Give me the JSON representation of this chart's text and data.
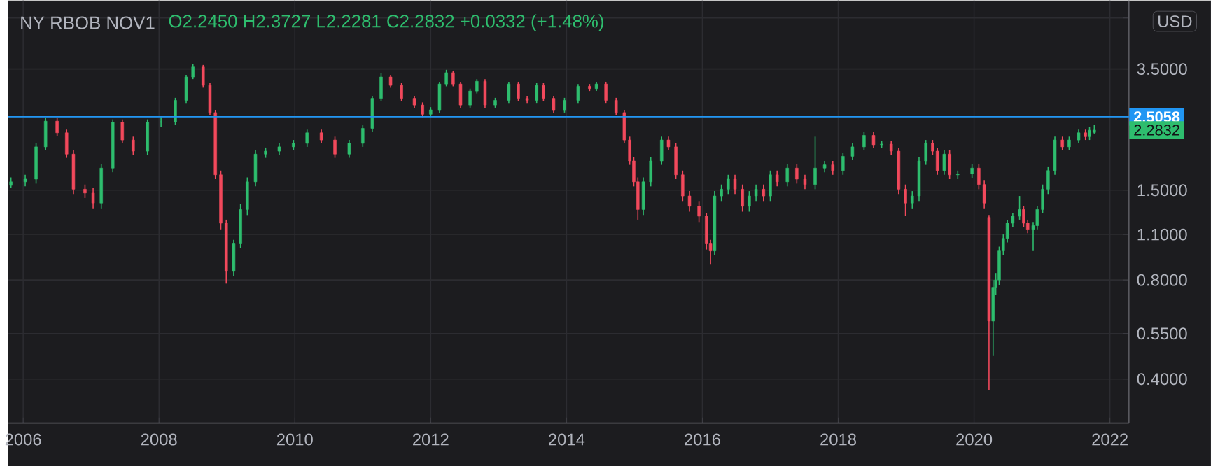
{
  "chart_data": {
    "type": "candlestick",
    "title": "NY RBOB NOV1",
    "subtitle": "O2.2450 H2.3727 L2.2281 C2.2832 +0.0332 (+1.48%)",
    "x": [
      2005.82,
      2006.03,
      2006.19,
      2006.33,
      2006.5,
      2006.64,
      2006.74,
      2006.91,
      2007.03,
      2007.15,
      2007.32,
      2007.46,
      2007.62,
      2007.83,
      2008.03,
      2008.24,
      2008.4,
      2008.5,
      2008.65,
      2008.75,
      2008.83,
      2008.91,
      2008.99,
      2009.1,
      2009.2,
      2009.3,
      2009.42,
      2009.57,
      2009.77,
      2009.98,
      2010.18,
      2010.39,
      2010.59,
      2010.8,
      2011.0,
      2011.14,
      2011.27,
      2011.41,
      2011.57,
      2011.76,
      2011.88,
      2012.0,
      2012.13,
      2012.23,
      2012.33,
      2012.44,
      2012.58,
      2012.68,
      2012.8,
      2012.95,
      2013.15,
      2013.29,
      2013.42,
      2013.56,
      2013.66,
      2013.81,
      2013.97,
      2014.17,
      2014.34,
      2014.44,
      2014.58,
      2014.73,
      2014.85,
      2014.93,
      2014.99,
      2015.05,
      2015.13,
      2015.24,
      2015.4,
      2015.5,
      2015.61,
      2015.71,
      2015.81,
      2015.95,
      2016.06,
      2016.12,
      2016.18,
      2016.28,
      2016.38,
      2016.48,
      2016.59,
      2016.69,
      2016.79,
      2016.9,
      2017.0,
      2017.1,
      2017.25,
      2017.39,
      2017.51,
      2017.66,
      2017.8,
      2017.92,
      2018.07,
      2018.21,
      2018.38,
      2018.52,
      2018.64,
      2018.78,
      2018.89,
      2018.99,
      2019.09,
      2019.19,
      2019.29,
      2019.39,
      2019.46,
      2019.56,
      2019.64,
      2019.76,
      2019.97,
      2020.07,
      2020.15,
      2020.22,
      2020.28,
      2020.32,
      2020.37,
      2020.43,
      2020.49,
      2020.57,
      2020.67,
      2020.73,
      2020.79,
      2020.87,
      2020.93,
      2021.01,
      2021.09,
      2021.19,
      2021.3,
      2021.4,
      2021.54,
      2021.64,
      2021.7,
      2021.77
    ],
    "ohlc": [
      [
        1.55,
        1.64,
        1.52,
        1.59
      ],
      [
        1.59,
        1.67,
        1.54,
        1.62
      ],
      [
        1.62,
        2.08,
        1.57,
        2.03
      ],
      [
        2.03,
        2.48,
        1.98,
        2.43
      ],
      [
        2.43,
        2.48,
        2.19,
        2.24
      ],
      [
        2.24,
        2.29,
        1.88,
        1.93
      ],
      [
        1.93,
        1.98,
        1.46,
        1.51
      ],
      [
        1.51,
        1.56,
        1.42,
        1.47
      ],
      [
        1.47,
        1.52,
        1.32,
        1.37
      ],
      [
        1.37,
        1.8,
        1.32,
        1.75
      ],
      [
        1.75,
        2.46,
        1.7,
        2.41
      ],
      [
        2.41,
        2.46,
        2.08,
        2.13
      ],
      [
        2.13,
        2.18,
        1.92,
        1.97
      ],
      [
        1.97,
        2.46,
        1.92,
        2.41
      ],
      [
        2.41,
        2.5,
        2.33,
        2.42
      ],
      [
        2.42,
        2.86,
        2.37,
        2.81
      ],
      [
        2.81,
        3.36,
        2.76,
        3.31
      ],
      [
        3.31,
        3.63,
        3.26,
        3.55
      ],
      [
        3.55,
        3.6,
        3.07,
        3.12
      ],
      [
        3.12,
        3.17,
        2.53,
        2.58
      ],
      [
        2.58,
        2.63,
        1.62,
        1.67
      ],
      [
        1.67,
        1.72,
        1.14,
        1.19
      ],
      [
        1.19,
        1.22,
        0.78,
        0.85
      ],
      [
        0.85,
        1.06,
        0.82,
        1.03
      ],
      [
        1.03,
        1.36,
        1.0,
        1.31
      ],
      [
        1.31,
        1.64,
        1.26,
        1.59
      ],
      [
        1.59,
        1.98,
        1.54,
        1.93
      ],
      [
        1.93,
        2.02,
        1.88,
        1.97
      ],
      [
        1.97,
        2.08,
        1.92,
        2.03
      ],
      [
        2.03,
        2.13,
        1.98,
        2.08
      ],
      [
        2.08,
        2.29,
        2.03,
        2.24
      ],
      [
        2.24,
        2.29,
        2.08,
        2.13
      ],
      [
        2.13,
        2.18,
        1.88,
        1.93
      ],
      [
        1.93,
        2.13,
        1.88,
        2.08
      ],
      [
        2.08,
        2.36,
        2.03,
        2.31
      ],
      [
        2.31,
        2.9,
        2.26,
        2.85
      ],
      [
        2.85,
        3.4,
        2.8,
        3.31
      ],
      [
        3.31,
        3.36,
        3.07,
        3.12
      ],
      [
        3.12,
        3.17,
        2.8,
        2.85
      ],
      [
        2.85,
        2.9,
        2.67,
        2.72
      ],
      [
        2.72,
        2.77,
        2.5,
        2.55
      ],
      [
        2.55,
        2.68,
        2.5,
        2.63
      ],
      [
        2.63,
        3.2,
        2.58,
        3.15
      ],
      [
        3.15,
        3.48,
        3.1,
        3.41
      ],
      [
        3.41,
        3.46,
        3.1,
        3.15
      ],
      [
        3.15,
        3.2,
        2.67,
        2.72
      ],
      [
        2.72,
        3.05,
        2.67,
        3.0
      ],
      [
        3.0,
        3.26,
        2.95,
        3.21
      ],
      [
        3.21,
        3.26,
        2.67,
        2.72
      ],
      [
        2.72,
        2.86,
        2.67,
        2.81
      ],
      [
        2.81,
        3.2,
        2.76,
        3.15
      ],
      [
        3.15,
        3.2,
        2.8,
        2.85
      ],
      [
        2.85,
        2.9,
        2.76,
        2.81
      ],
      [
        2.81,
        3.17,
        2.76,
        3.12
      ],
      [
        3.12,
        3.17,
        2.8,
        2.85
      ],
      [
        2.85,
        2.9,
        2.58,
        2.63
      ],
      [
        2.63,
        2.86,
        2.58,
        2.81
      ],
      [
        2.81,
        3.15,
        2.76,
        3.1
      ],
      [
        3.1,
        3.15,
        3.0,
        3.05
      ],
      [
        3.05,
        3.2,
        3.0,
        3.15
      ],
      [
        3.15,
        3.2,
        2.76,
        2.81
      ],
      [
        2.81,
        2.86,
        2.53,
        2.58
      ],
      [
        2.58,
        2.63,
        2.08,
        2.13
      ],
      [
        2.13,
        2.18,
        1.79,
        1.84
      ],
      [
        1.84,
        1.89,
        1.54,
        1.59
      ],
      [
        1.59,
        1.64,
        1.22,
        1.31
      ],
      [
        1.31,
        1.64,
        1.26,
        1.59
      ],
      [
        1.59,
        1.89,
        1.54,
        1.84
      ],
      [
        1.84,
        2.18,
        1.79,
        2.13
      ],
      [
        2.13,
        2.18,
        1.98,
        2.03
      ],
      [
        2.03,
        2.08,
        1.62,
        1.67
      ],
      [
        1.67,
        1.72,
        1.39,
        1.44
      ],
      [
        1.44,
        1.49,
        1.29,
        1.34
      ],
      [
        1.34,
        1.39,
        1.2,
        1.25
      ],
      [
        1.25,
        1.28,
        0.99,
        1.03
      ],
      [
        1.03,
        1.06,
        0.89,
        0.98
      ],
      [
        0.98,
        1.49,
        0.95,
        1.44
      ],
      [
        1.44,
        1.56,
        1.39,
        1.51
      ],
      [
        1.51,
        1.67,
        1.46,
        1.62
      ],
      [
        1.62,
        1.67,
        1.46,
        1.51
      ],
      [
        1.51,
        1.56,
        1.29,
        1.34
      ],
      [
        1.34,
        1.49,
        1.29,
        1.44
      ],
      [
        1.44,
        1.56,
        1.39,
        1.51
      ],
      [
        1.51,
        1.56,
        1.39,
        1.44
      ],
      [
        1.44,
        1.72,
        1.39,
        1.67
      ],
      [
        1.67,
        1.72,
        1.54,
        1.59
      ],
      [
        1.59,
        1.8,
        1.54,
        1.75
      ],
      [
        1.75,
        1.8,
        1.57,
        1.62
      ],
      [
        1.62,
        1.67,
        1.51,
        1.56
      ],
      [
        1.56,
        2.18,
        1.51,
        1.75
      ],
      [
        1.75,
        1.84,
        1.7,
        1.79
      ],
      [
        1.79,
        1.84,
        1.67,
        1.72
      ],
      [
        1.72,
        1.95,
        1.67,
        1.9
      ],
      [
        1.9,
        2.08,
        1.85,
        2.03
      ],
      [
        2.03,
        2.25,
        1.98,
        2.2
      ],
      [
        2.2,
        2.25,
        2.01,
        2.06
      ],
      [
        2.06,
        2.11,
        2.01,
        2.07
      ],
      [
        2.07,
        2.12,
        1.92,
        1.97
      ],
      [
        1.97,
        2.02,
        1.46,
        1.51
      ],
      [
        1.51,
        1.56,
        1.25,
        1.37
      ],
      [
        1.37,
        1.49,
        1.32,
        1.44
      ],
      [
        1.44,
        1.89,
        1.39,
        1.84
      ],
      [
        1.84,
        2.13,
        1.79,
        2.08
      ],
      [
        2.08,
        2.13,
        1.92,
        1.97
      ],
      [
        1.97,
        2.02,
        1.67,
        1.72
      ],
      [
        1.72,
        1.98,
        1.67,
        1.93
      ],
      [
        1.93,
        1.98,
        1.62,
        1.67
      ],
      [
        1.67,
        1.72,
        1.62,
        1.68
      ],
      [
        1.68,
        1.8,
        1.63,
        1.75
      ],
      [
        1.75,
        1.8,
        1.51,
        1.56
      ],
      [
        1.56,
        1.61,
        1.32,
        1.37
      ],
      [
        1.24,
        1.26,
        0.37,
        0.6
      ],
      [
        0.6,
        0.8,
        0.47,
        0.76
      ],
      [
        0.76,
        0.84,
        0.72,
        0.8
      ],
      [
        0.8,
        1.01,
        0.77,
        0.98
      ],
      [
        0.98,
        1.1,
        0.95,
        1.07
      ],
      [
        1.07,
        1.22,
        1.04,
        1.19
      ],
      [
        1.19,
        1.28,
        1.16,
        1.25
      ],
      [
        1.25,
        1.44,
        1.22,
        1.31
      ],
      [
        1.31,
        1.34,
        1.16,
        1.19
      ],
      [
        1.19,
        1.22,
        1.11,
        1.14
      ],
      [
        1.14,
        1.2,
        0.98,
        1.17
      ],
      [
        1.17,
        1.34,
        1.14,
        1.31
      ],
      [
        1.31,
        1.56,
        1.28,
        1.51
      ],
      [
        1.51,
        1.77,
        1.46,
        1.72
      ],
      [
        1.72,
        2.18,
        1.67,
        2.13
      ],
      [
        2.13,
        2.18,
        1.98,
        2.03
      ],
      [
        2.03,
        2.18,
        1.98,
        2.13
      ],
      [
        2.13,
        2.29,
        2.08,
        2.24
      ],
      [
        2.24,
        2.29,
        2.13,
        2.18
      ],
      [
        2.18,
        2.33,
        2.13,
        2.28
      ],
      [
        2.245,
        2.3727,
        2.2281,
        2.2832
      ]
    ],
    "log": "y",
    "grid": true,
    "xlim": [
      2005.78,
      2022.28
    ],
    "xticks": [
      2006,
      2008,
      2010,
      2012,
      2014,
      2016,
      2018,
      2020,
      2022
    ],
    "ylim": [
      0.294,
      5.65
    ],
    "yticks": [
      {
        "value": 0.4,
        "label": "0.4000"
      },
      {
        "value": 0.55,
        "label": "0.5500"
      },
      {
        "value": 0.8,
        "label": "0.8000"
      },
      {
        "value": 1.1,
        "label": "1.1000"
      },
      {
        "value": 1.5,
        "label": "1.5000"
      },
      {
        "value": 2.5,
        "label": null
      },
      {
        "value": 3.5,
        "label": "3.5000"
      },
      {
        "value": 5,
        "label": null
      }
    ],
    "ref_lines": [
      {
        "axis": "y",
        "value": 2.5058,
        "label": "2.5058",
        "color": "#2196f3"
      }
    ],
    "annotations": [
      "USD",
      "2.2832"
    ]
  }
}
